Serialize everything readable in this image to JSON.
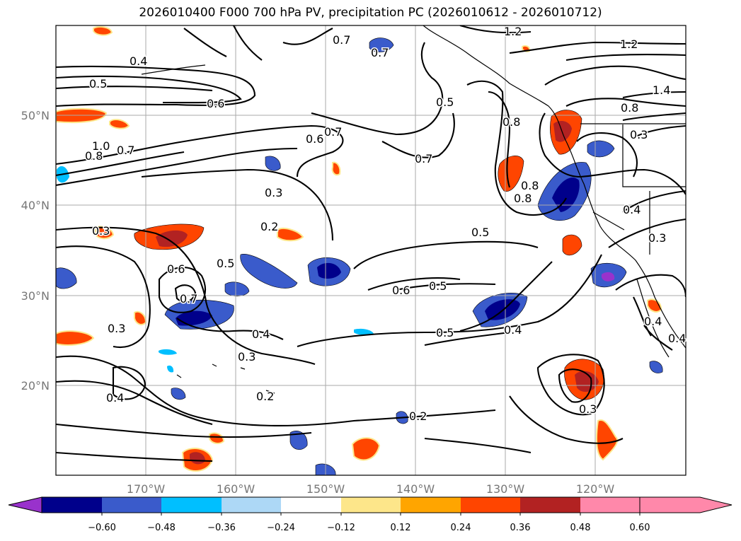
{
  "title": "2026010400 F000 700 hPa PV, precipitation PC (2026010612 - 2026010712)",
  "lat_labels": [
    "50°N",
    "40°N",
    "30°N",
    "20°N"
  ],
  "lon_labels": [
    "170°W",
    "160°W",
    "150°W",
    "140°W",
    "130°W",
    "120°W"
  ],
  "colorbar": {
    "colors": [
      "#9932cc",
      "#00008b",
      "#3a5bcb",
      "#00bfff",
      "#add8f6",
      "#ffffff",
      "#fde68a",
      "#ffa500",
      "#ff4500",
      "#b22222",
      "#ff88aa"
    ],
    "tick_labels": [
      "−0.60",
      "−0.48",
      "−0.36",
      "−0.24",
      "−0.12",
      "0.12",
      "0.24",
      "0.36",
      "0.48",
      "0.60"
    ]
  },
  "contour_labels": [
    "0.7",
    "1.2",
    "0.4",
    "0.7",
    "1.2",
    "0.5",
    "0.5",
    "1.4",
    "0.6",
    "0.8",
    "0.6",
    "0.7",
    "0.8",
    "0.3",
    "1.0",
    "0.8",
    "0.7",
    "0.7",
    "0.3",
    "0.8",
    "0.4",
    "0.2",
    "0.5",
    "0.3",
    "0.3",
    "0.6",
    "0.5",
    "0.6",
    "0.5",
    "0.7",
    "0.4",
    "0.4",
    "0.3",
    "0.5",
    "0.4",
    "0.3",
    "0.4",
    "0.2",
    "0.2",
    "0.3",
    "0.4",
    "0.8"
  ]
}
